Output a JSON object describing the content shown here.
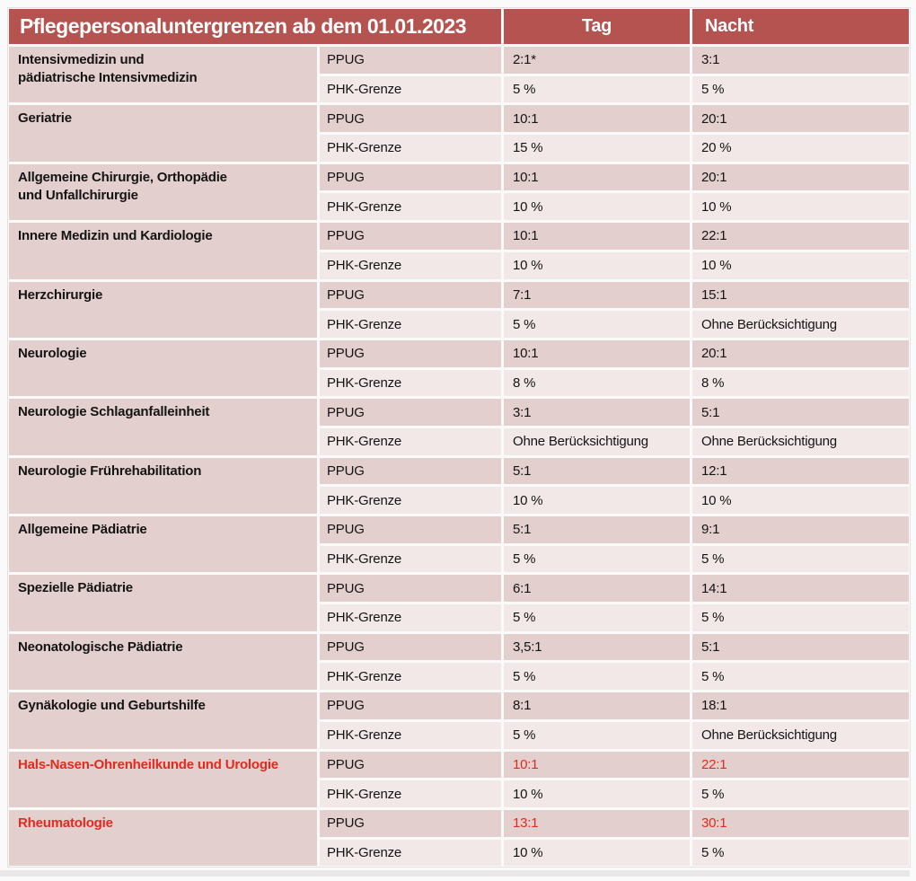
{
  "page": {
    "background": "#fbfafa"
  },
  "table": {
    "header": {
      "title": "Pflegepersonaluntergrenzen ab dem 01.01.2023",
      "day_label": "Tag",
      "night_label": "Nacht"
    },
    "row_labels": {
      "ppug": "PPUG",
      "phk": "PHK-Grenze"
    },
    "colors": {
      "header_bg": "#b4534f",
      "header_text": "#ffffff",
      "row_dark": "#e3cfce",
      "row_light": "#f1e8e7",
      "text": "#141414",
      "highlight": "#e5291d"
    },
    "groups": [
      {
        "name": "Intensivmedizin und\npädiatrische Intensivmedizin",
        "ppug_day": "2:1*",
        "ppug_night": "3:1",
        "phk_day": "5 %",
        "phk_night": "5 %",
        "highlight": false
      },
      {
        "name": "Geriatrie",
        "ppug_day": "10:1",
        "ppug_night": "20:1",
        "phk_day": "15 %",
        "phk_night": "20 %",
        "highlight": false
      },
      {
        "name": "Allgemeine Chirurgie, Orthopädie\nund Unfallchirurgie",
        "ppug_day": "10:1",
        "ppug_night": "20:1",
        "phk_day": "10 %",
        "phk_night": "10 %",
        "highlight": false
      },
      {
        "name": "Innere Medizin und Kardiologie",
        "ppug_day": "10:1",
        "ppug_night": "22:1",
        "phk_day": "10 %",
        "phk_night": "10 %",
        "highlight": false
      },
      {
        "name": "Herzchirurgie",
        "ppug_day": "7:1",
        "ppug_night": "15:1",
        "phk_day": "5 %",
        "phk_night": "Ohne Berücksichtigung",
        "highlight": false
      },
      {
        "name": "Neurologie",
        "ppug_day": "10:1",
        "ppug_night": "20:1",
        "phk_day": "8 %",
        "phk_night": "8 %",
        "highlight": false
      },
      {
        "name": "Neurologie Schlaganfalleinheit",
        "ppug_day": "3:1",
        "ppug_night": "5:1",
        "phk_day": "Ohne Berücksichtigung",
        "phk_night": "Ohne Berücksichtigung",
        "highlight": false
      },
      {
        "name": "Neurologie Frührehabilitation",
        "ppug_day": "5:1",
        "ppug_night": "12:1",
        "phk_day": "10 %",
        "phk_night": "10 %",
        "highlight": false
      },
      {
        "name": "Allgemeine Pädiatrie",
        "ppug_day": "5:1",
        "ppug_night": "9:1",
        "phk_day": "5 %",
        "phk_night": "5 %",
        "highlight": false
      },
      {
        "name": "Spezielle Pädiatrie",
        "ppug_day": "6:1",
        "ppug_night": "14:1",
        "phk_day": "5 %",
        "phk_night": "5 %",
        "highlight": false
      },
      {
        "name": "Neonatologische Pädiatrie",
        "ppug_day": "3,5:1",
        "ppug_night": "5:1",
        "phk_day": "5 %",
        "phk_night": "5 %",
        "highlight": false
      },
      {
        "name": "Gynäkologie und Geburtshilfe",
        "ppug_day": "8:1",
        "ppug_night": "18:1",
        "phk_day": "5 %",
        "phk_night": "Ohne Berücksichtigung",
        "highlight": false
      },
      {
        "name": "Hals-Nasen-Ohrenheilkunde und Urologie",
        "ppug_day": "10:1",
        "ppug_night": "22:1",
        "phk_day": "10 %",
        "phk_night": "5 %",
        "highlight": true
      },
      {
        "name": "Rheumatologie",
        "ppug_day": "13:1",
        "ppug_night": "30:1",
        "phk_day": "10 %",
        "phk_night": "5 %",
        "highlight": true
      }
    ]
  }
}
